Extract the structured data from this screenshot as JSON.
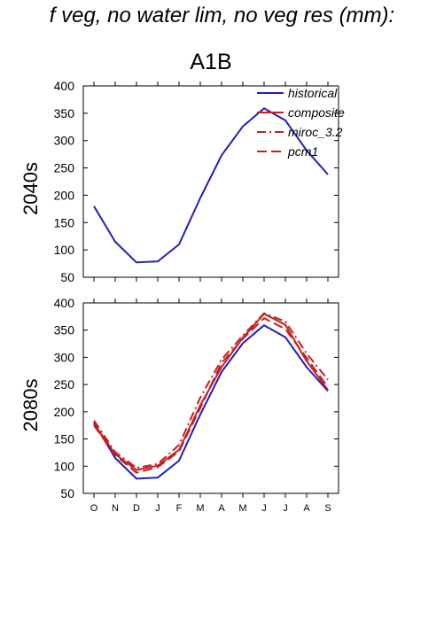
{
  "header": {
    "title": "f veg, no water lim, no veg res (mm):",
    "scenario": "A1B"
  },
  "chart_data": [
    {
      "type": "line",
      "ylabel": "2040s",
      "ylim": [
        50,
        400
      ],
      "yticks": [
        "50",
        "100",
        "150",
        "200",
        "250",
        "300",
        "350",
        "400"
      ],
      "categories": [
        "O",
        "N",
        "D",
        "J",
        "F",
        "M",
        "A",
        "M",
        "J",
        "J",
        "A",
        "S"
      ],
      "legend_position": "top-right",
      "legend": [
        {
          "name": "historical",
          "color": "#1f1fbf",
          "dash": "solid"
        },
        {
          "name": "composite",
          "color": "#c81e1e",
          "dash": "solid"
        },
        {
          "name": "miroc_3.2",
          "color": "#c81e1e",
          "dash": "dashdot"
        },
        {
          "name": "pcm1",
          "color": "#c81e1e",
          "dash": "dash"
        }
      ],
      "series": [
        {
          "name": "historical",
          "color": "#1f1fbf",
          "dash": "solid",
          "values": [
            180,
            115,
            77,
            79,
            110,
            195,
            273,
            326,
            359,
            337,
            282,
            238
          ]
        }
      ]
    },
    {
      "type": "line",
      "ylabel": "2080s",
      "ylim": [
        50,
        400
      ],
      "yticks": [
        "50",
        "100",
        "150",
        "200",
        "250",
        "300",
        "350",
        "400"
      ],
      "categories": [
        "O",
        "N",
        "D",
        "J",
        "F",
        "M",
        "A",
        "M",
        "J",
        "J",
        "A",
        "S"
      ],
      "series": [
        {
          "name": "historical",
          "color": "#1f1fbf",
          "dash": "solid",
          "values": [
            180,
            115,
            77,
            79,
            110,
            195,
            273,
            326,
            359,
            337,
            282,
            238
          ]
        },
        {
          "name": "composite",
          "color": "#c81e1e",
          "dash": "solid",
          "values": [
            178,
            122,
            93,
            101,
            130,
            212,
            282,
            336,
            380,
            360,
            293,
            240
          ]
        },
        {
          "name": "miroc_3.2",
          "color": "#c81e1e",
          "dash": "dashdot",
          "values": [
            184,
            126,
            97,
            104,
            139,
            226,
            296,
            340,
            381,
            366,
            307,
            259
          ]
        },
        {
          "name": "pcm1",
          "color": "#c81e1e",
          "dash": "dash",
          "values": [
            175,
            120,
            88,
            98,
            127,
            207,
            290,
            334,
            372,
            352,
            299,
            245
          ]
        }
      ]
    }
  ]
}
